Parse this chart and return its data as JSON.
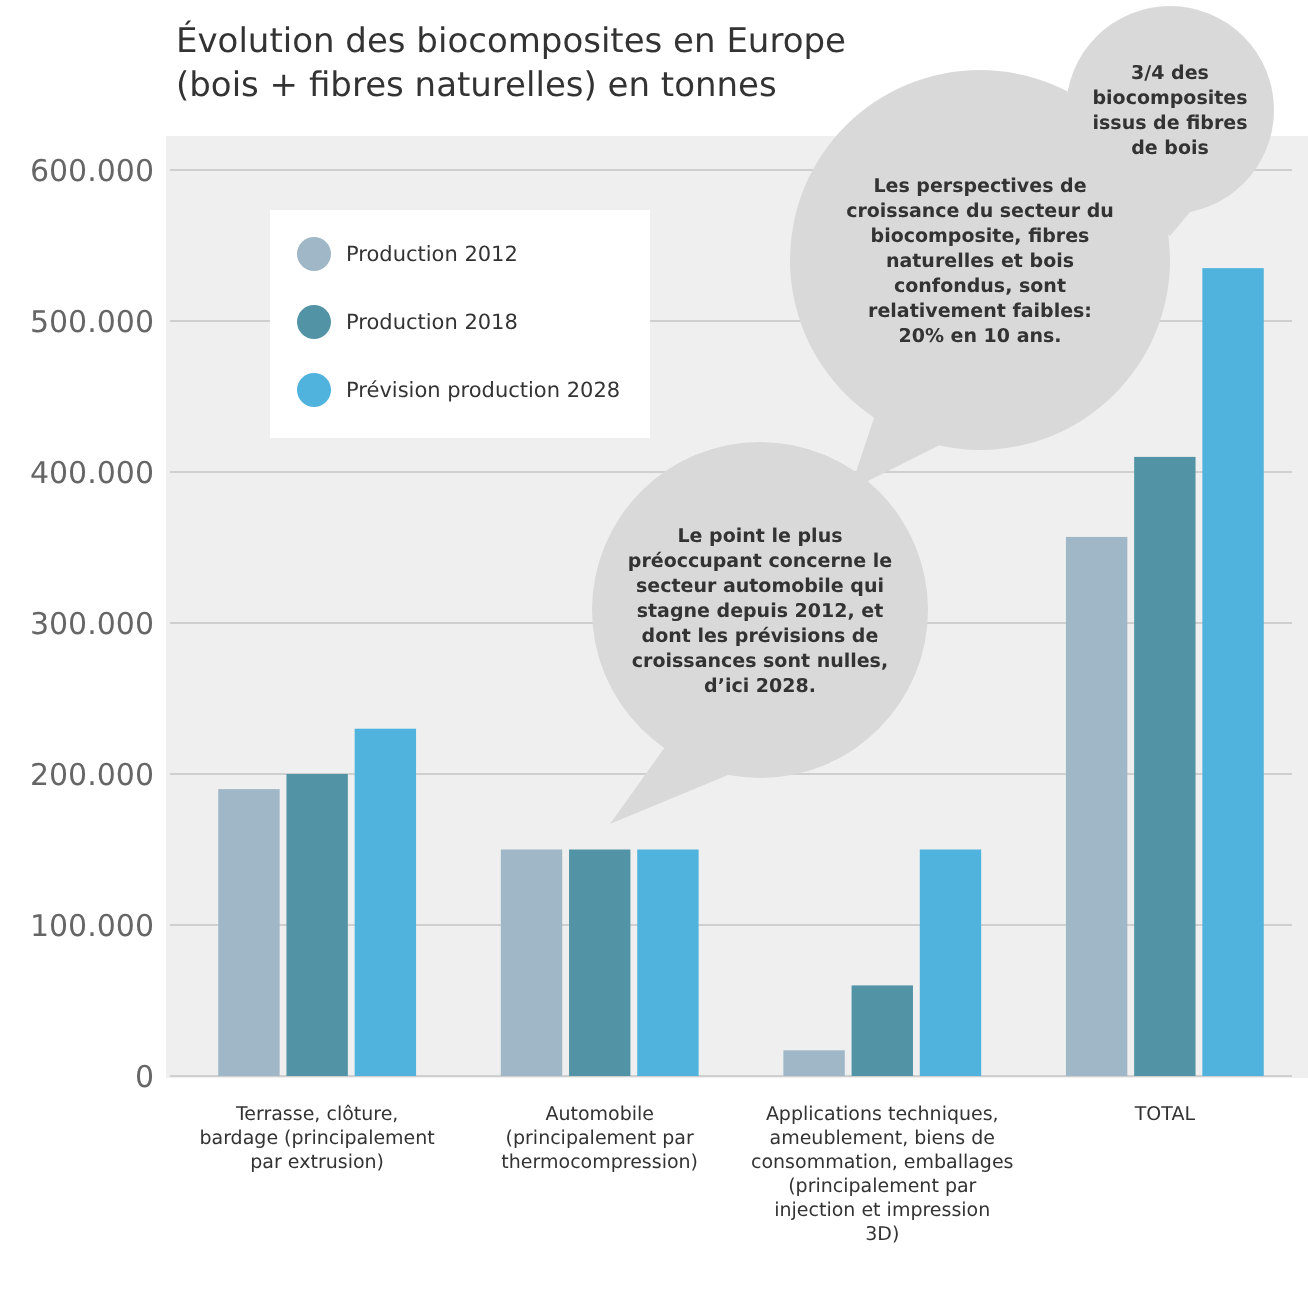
{
  "chart_data": {
    "type": "bar",
    "title": "Évolution des biocomposites en Europe (bois + fibres naturelles) en tonnes",
    "categories": [
      "Terrasse, clôture, bardage (principalement par extrusion)",
      "Automobile (principalement par thermocompression)",
      "Applications techniques, ameublement, biens de consommation, emballages (principalement par injection et impression 3D)",
      "TOTAL"
    ],
    "series": [
      {
        "name": "Production 2012",
        "color": "#9fb7c6",
        "values": [
          190000,
          150000,
          17000,
          357000
        ]
      },
      {
        "name": "Production 2018",
        "color": "#5294a6",
        "values": [
          200000,
          150000,
          60000,
          410000
        ]
      },
      {
        "name": "Prévision production 2028",
        "color": "#4fb3de",
        "values": [
          230000,
          150000,
          150000,
          535000
        ]
      }
    ],
    "ylim": [
      0,
      600000
    ],
    "yticks": [
      {
        "value": 0,
        "label": "0"
      },
      {
        "value": 100000,
        "label": "100.000"
      },
      {
        "value": 200000,
        "label": "200.000"
      },
      {
        "value": 300000,
        "label": "300.000"
      },
      {
        "value": 400000,
        "label": "400.000"
      },
      {
        "value": 500000,
        "label": "500.000"
      },
      {
        "value": 600000,
        "label": "600.000"
      }
    ],
    "grid": "y",
    "legend": "top left",
    "annotations": [
      "Le point le plus préoccupant concerne le secteur automobile qui stagne depuis 2012, et dont les prévisions de croissances sont nulles, d’ici 2028.",
      "Les perspectives de croissance du secteur du biocomposite, fibres naturelles et bois confondus, sont relativement faibles: 20% en 10 ans.",
      "3/4 des biocomposites issus de fibres de bois"
    ]
  }
}
